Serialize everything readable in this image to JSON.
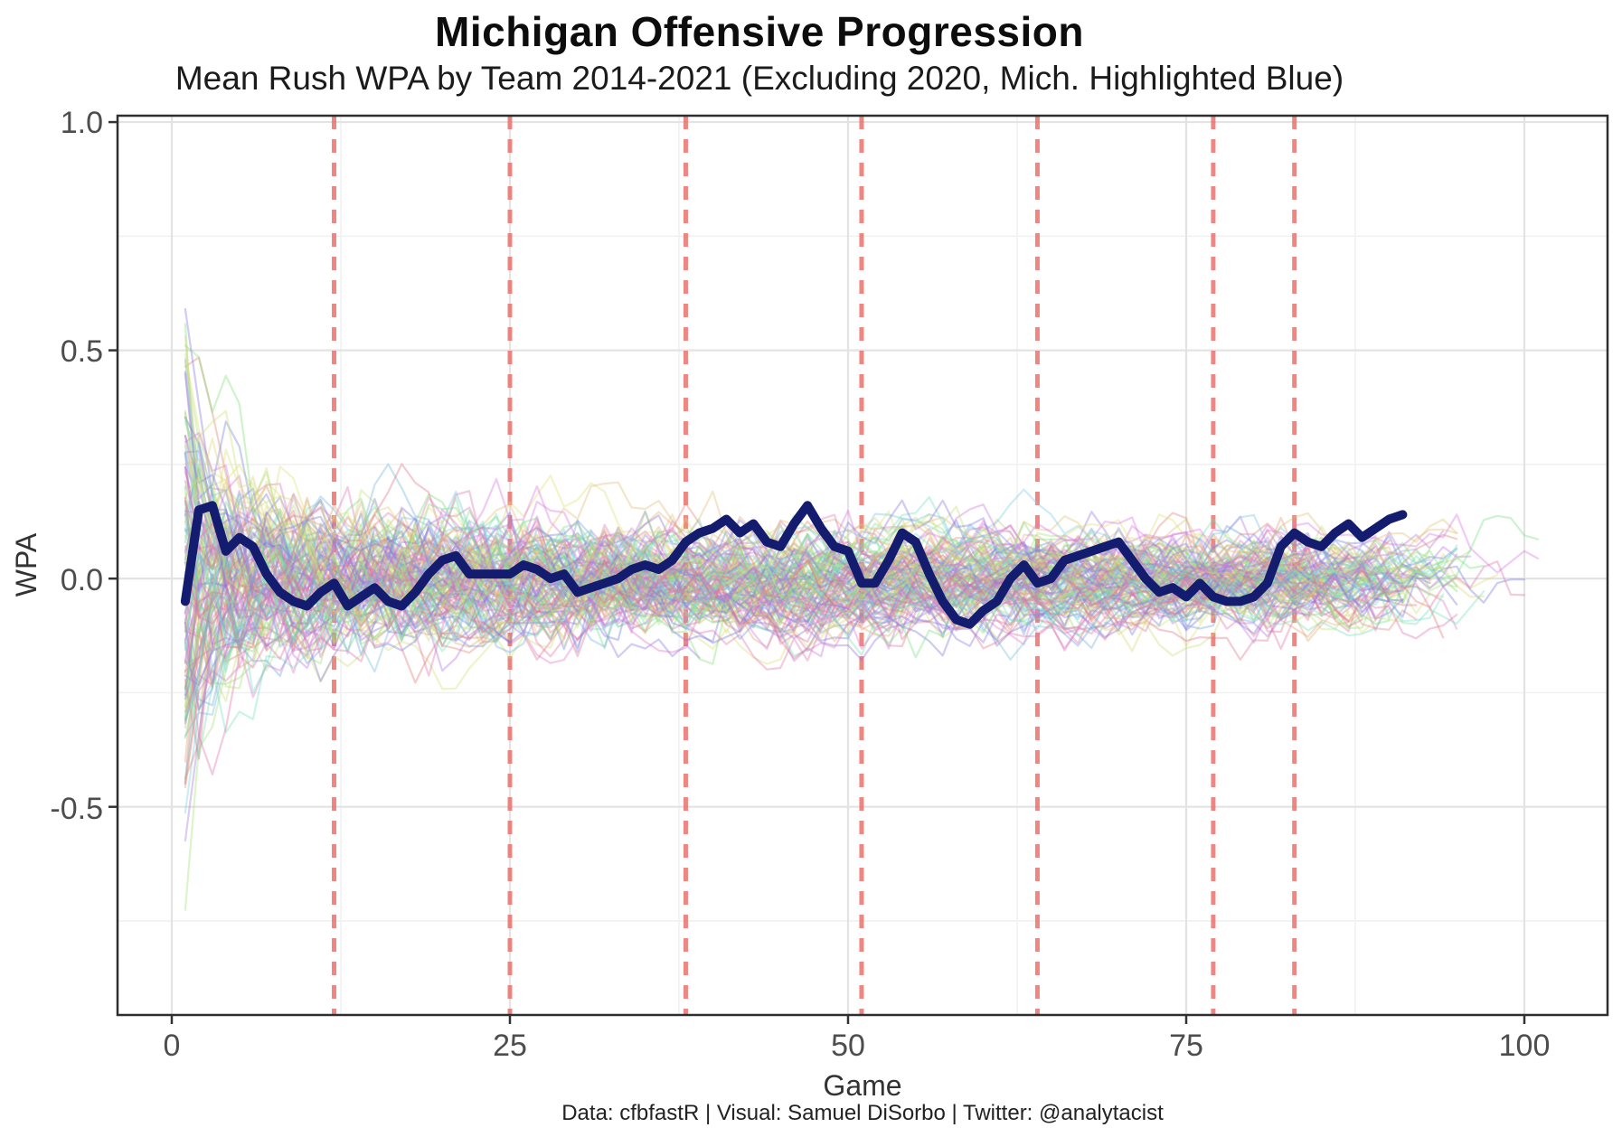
{
  "title": "Michigan Offensive Progression",
  "subtitle": "Mean Rush WPA by Team 2014-2021 (Excluding 2020, Mich. Highlighted Blue)",
  "caption": "Data: cfbfastR | Visual: Samuel DiSorbo | Twitter: @analytacist",
  "colors": {
    "michigan_line": "#131c6e",
    "season_divider": "#eb6964",
    "grid_major": "#e3e3e3",
    "grid_minor": "#f1f1f1",
    "panel_border": "#2e2e2e",
    "tick_text": "#4d4d4d",
    "background": "#ffffff"
  },
  "chart_data": {
    "type": "line",
    "title": "Michigan Offensive Progression",
    "subtitle": "Mean Rush WPA by Team 2014-2021 (Excluding 2020, Mich. Highlighted Blue)",
    "xlabel": "Game",
    "ylabel": "WPA",
    "xlim": [
      -4.01,
      106.15
    ],
    "ylim": [
      -0.956,
      1.014
    ],
    "x_ticks": [
      0,
      25,
      50,
      75,
      100
    ],
    "x_tick_labels": [
      "0",
      "25",
      "50",
      "75",
      "100"
    ],
    "x_minor_ticks": [
      12.5,
      37.5,
      62.5,
      87.5
    ],
    "y_ticks": [
      1.0,
      0.5,
      0.0,
      -0.5
    ],
    "y_tick_labels": [
      "1.0",
      "0.5",
      "0.0",
      "-0.5"
    ],
    "y_minor_ticks": [
      0.75,
      0.25,
      -0.25,
      -0.75
    ],
    "grid": true,
    "legend": "none",
    "season_dividers_x": [
      12,
      25,
      38,
      51,
      64,
      77,
      83
    ],
    "season_divider_style": {
      "dash": [
        15,
        11
      ],
      "width": 5,
      "opacity": 0.8
    },
    "michigan_series": {
      "name": "Michigan (highlighted)",
      "start_game": 1,
      "stroke_width": 10,
      "wpa": [
        -0.05,
        0.15,
        0.16,
        0.06,
        0.09,
        0.07,
        0.01,
        -0.03,
        -0.05,
        -0.06,
        -0.03,
        -0.01,
        -0.06,
        -0.04,
        -0.02,
        -0.05,
        -0.06,
        -0.03,
        0.01,
        0.04,
        0.05,
        0.01,
        0.01,
        0.01,
        0.01,
        0.03,
        0.02,
        0.0,
        0.01,
        -0.03,
        -0.02,
        -0.01,
        0.0,
        0.02,
        0.03,
        0.02,
        0.04,
        0.08,
        0.1,
        0.11,
        0.13,
        0.1,
        0.12,
        0.08,
        0.07,
        0.12,
        0.16,
        0.11,
        0.07,
        0.06,
        -0.01,
        -0.01,
        0.04,
        0.1,
        0.08,
        0.01,
        -0.05,
        -0.09,
        -0.1,
        -0.07,
        -0.05,
        0.0,
        0.03,
        -0.01,
        0.0,
        0.04,
        0.05,
        0.06,
        0.07,
        0.08,
        0.04,
        0.0,
        -0.03,
        -0.02,
        -0.04,
        -0.01,
        -0.04,
        -0.05,
        -0.05,
        -0.04,
        -0.01,
        0.07,
        0.1,
        0.08,
        0.07,
        0.1,
        0.12,
        0.09,
        0.11,
        0.13,
        0.14
      ]
    },
    "background_ensemble": {
      "description": "Unlabeled mean rush WPA traces for all FBS teams 2014-2021 (excluding 2020), semi-transparent multicolor",
      "count": 128,
      "seed": 11,
      "alpha": 0.38,
      "stroke_width": 2.2,
      "start_game": 1,
      "max_games": 101
    }
  }
}
